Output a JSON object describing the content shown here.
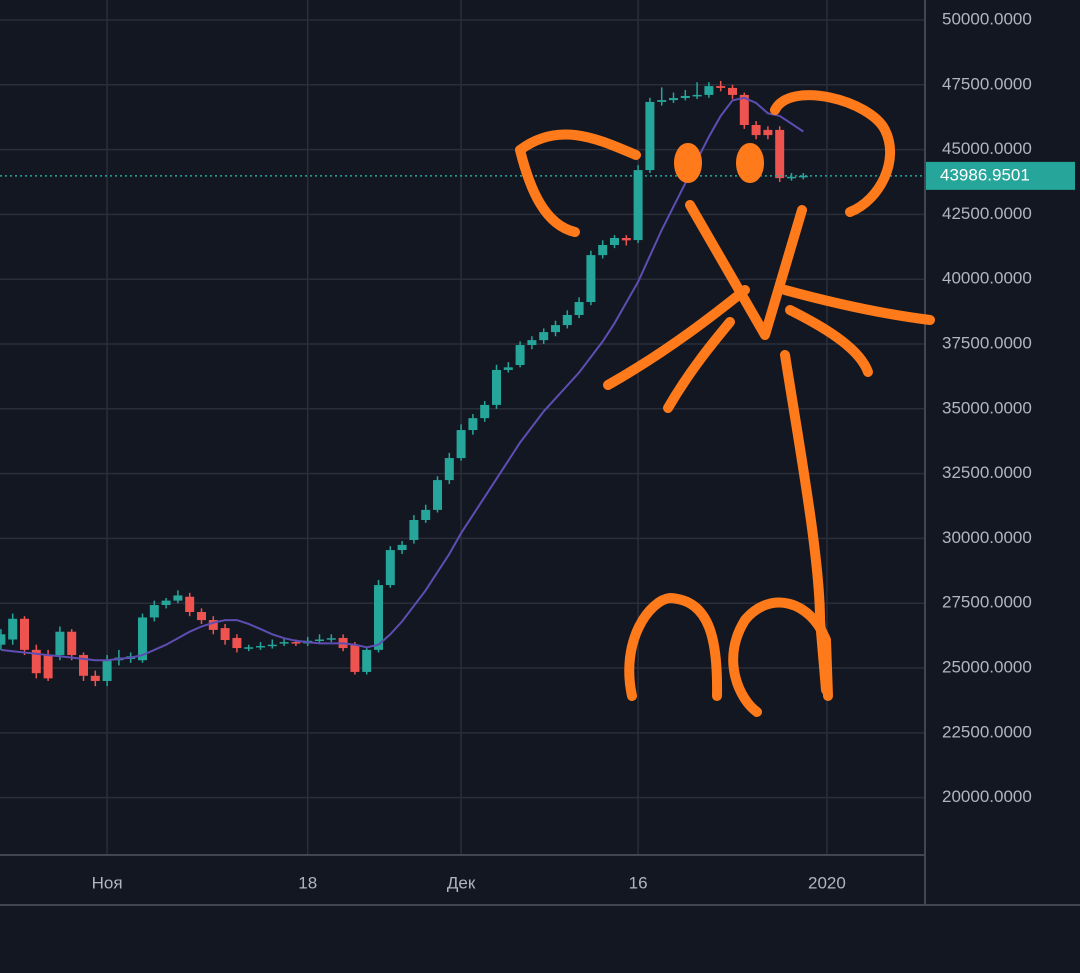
{
  "chart_data": {
    "type": "candlestick",
    "categories": [
      null,
      null,
      null,
      null,
      null,
      null,
      null,
      null,
      null,
      "Ноя",
      null,
      null,
      null,
      null,
      null,
      null,
      null,
      null,
      null,
      null,
      null,
      null,
      null,
      null,
      null,
      null,
      "18",
      null,
      null,
      null,
      null,
      null,
      null,
      null,
      null,
      null,
      null,
      null,
      null,
      "Дек",
      null,
      null,
      null,
      null,
      null,
      null,
      null,
      null,
      null,
      null,
      null,
      null,
      null,
      null,
      "16",
      null,
      null,
      null,
      null,
      null,
      null,
      null,
      null,
      null,
      null,
      null,
      null,
      null,
      null,
      null,
      "2020",
      null,
      null,
      null,
      null,
      null,
      null,
      null
    ],
    "open": [
      25900,
      26100,
      26900,
      25700,
      25500,
      25500,
      26400,
      25500,
      24700,
      24500,
      25300,
      25350,
      25300,
      26950,
      27430,
      27600,
      27750,
      27160,
      26850,
      26540,
      26160,
      25770,
      25800,
      25850,
      25950,
      26000,
      25950,
      26050,
      26100,
      26160,
      25890,
      24850,
      25700,
      28200,
      29550,
      29940,
      30710,
      31100,
      32250,
      33100,
      34180,
      34640,
      35150,
      36500,
      36690,
      37460,
      37650,
      37960,
      38230,
      38620,
      39120,
      40930,
      41320,
      41590,
      41510,
      44210,
      46840,
      46910,
      46990,
      47070,
      47110,
      47450,
      47380,
      47110,
      45950,
      45760,
      45760,
      43900,
      43940,
      null,
      null,
      null,
      null,
      null,
      null,
      null,
      null,
      null
    ],
    "high": [
      26500,
      27100,
      27000,
      25900,
      25700,
      26600,
      26500,
      25600,
      24900,
      25500,
      25700,
      25600,
      27100,
      27600,
      27700,
      28000,
      27900,
      27300,
      27000,
      26700,
      26300,
      25900,
      26000,
      26100,
      26150,
      26100,
      26200,
      26300,
      26300,
      26300,
      26000,
      25800,
      28400,
      29700,
      29900,
      30900,
      31300,
      32400,
      33300,
      34400,
      34800,
      35300,
      36700,
      36800,
      37600,
      37800,
      38100,
      38400,
      38800,
      39300,
      41100,
      41500,
      41700,
      41700,
      44400,
      47000,
      47400,
      47200,
      47300,
      47600,
      47600,
      47650,
      47500,
      47200,
      46100,
      45900,
      45900,
      44100,
      44100,
      null,
      null,
      null,
      null,
      null,
      null,
      null,
      null,
      null
    ],
    "low": [
      25700,
      25900,
      25500,
      24600,
      24500,
      25300,
      25300,
      24500,
      24300,
      24300,
      25100,
      25200,
      25200,
      26800,
      27300,
      27500,
      27000,
      26700,
      26300,
      25900,
      25600,
      25650,
      25700,
      25750,
      25850,
      25850,
      25850,
      25950,
      26000,
      25650,
      24750,
      24750,
      25600,
      28100,
      29400,
      29800,
      30600,
      31000,
      32100,
      33000,
      34000,
      34500,
      35000,
      36400,
      36600,
      37300,
      37500,
      37800,
      38100,
      38500,
      39000,
      40800,
      41200,
      41300,
      41400,
      44100,
      46700,
      46800,
      46900,
      46950,
      47000,
      47250,
      46950,
      45800,
      45400,
      45400,
      43750,
      43800,
      43850,
      null,
      null,
      null,
      null,
      null,
      null,
      null,
      null,
      null
    ],
    "close": [
      26300,
      26900,
      25700,
      24800,
      24600,
      26400,
      25500,
      24700,
      24500,
      25300,
      25400,
      25450,
      26950,
      27430,
      27600,
      27800,
      27160,
      26850,
      26470,
      26080,
      25770,
      25800,
      25850,
      25900,
      26000,
      25950,
      26050,
      26100,
      26150,
      25770,
      24850,
      25700,
      28200,
      29550,
      29750,
      30710,
      31100,
      32250,
      33100,
      34180,
      34640,
      35150,
      36500,
      36600,
      37460,
      37650,
      37960,
      38230,
      38620,
      39120,
      40930,
      41320,
      41590,
      41500,
      44210,
      46840,
      46910,
      46990,
      47070,
      47110,
      47450,
      47380,
      47110,
      45950,
      45560,
      45560,
      43900,
      43950,
      43986.9501,
      null,
      null,
      null,
      null,
      null,
      null,
      null,
      null,
      null
    ],
    "up_color": "#26a69a",
    "down_color": "#ef5350",
    "moving_average": {
      "color": "#5e4db2",
      "values": [
        25700,
        25650,
        25600,
        25550,
        25500,
        25450,
        25400,
        25350,
        25300,
        25300,
        25350,
        25400,
        25500,
        25700,
        25900,
        26150,
        26400,
        26600,
        26750,
        26850,
        26850,
        26700,
        26500,
        26300,
        26150,
        26050,
        26000,
        25950,
        25950,
        25950,
        25900,
        25800,
        25900,
        26300,
        26800,
        27400,
        28000,
        28700,
        29400,
        30200,
        30900,
        31600,
        32300,
        33000,
        33700,
        34300,
        34900,
        35400,
        35900,
        36400,
        37000,
        37600,
        38300,
        39100,
        39900,
        40900,
        41900,
        42800,
        43700,
        44600,
        45500,
        46300,
        46900,
        47000,
        46800,
        46400,
        46300,
        46000,
        45700,
        null,
        null,
        null,
        null,
        null,
        null,
        null,
        null,
        null
      ]
    },
    "last_price": 43986.9501,
    "last_price_color": "#26a69a",
    "ylim": [
      17786,
      50772
    ],
    "yticks": [
      {
        "value": 20000,
        "label": "20000.0000"
      },
      {
        "value": 22500,
        "label": "22500.0000"
      },
      {
        "value": 25000,
        "label": "25000.0000"
      },
      {
        "value": 27500,
        "label": "27500.0000"
      },
      {
        "value": 30000,
        "label": "30000.0000"
      },
      {
        "value": 32500,
        "label": "32500.0000"
      },
      {
        "value": 35000,
        "label": "35000.0000"
      },
      {
        "value": 37500,
        "label": "37500.0000"
      },
      {
        "value": 40000,
        "label": "40000.0000"
      },
      {
        "value": 42500,
        "label": "42500.0000"
      },
      {
        "value": 45000,
        "label": "45000.0000"
      },
      {
        "value": 47500,
        "label": "47500.0000"
      },
      {
        "value": 50000,
        "label": "50000.0000"
      }
    ],
    "grid": true
  }
}
